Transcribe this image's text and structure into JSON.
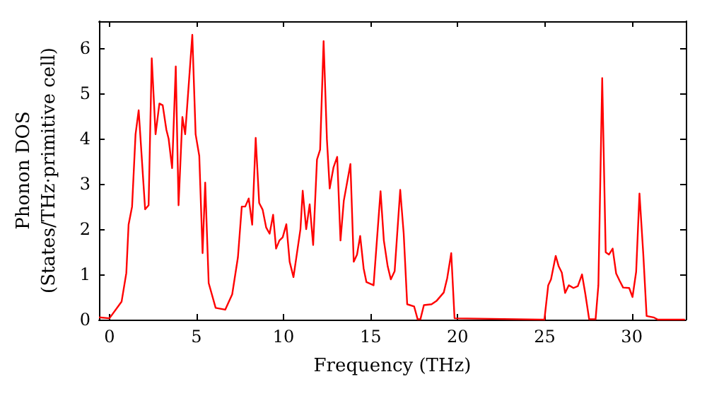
{
  "chart_data": {
    "type": "line",
    "xlabel": "Frequency (THz)",
    "ylabel": "Phonon DOS\n(States/THz·primitive cell)",
    "xlim": [
      -0.6,
      33.1
    ],
    "ylim": [
      0,
      6.6
    ],
    "xticks": [
      0,
      5,
      10,
      15,
      20,
      25,
      30
    ],
    "yticks": [
      0,
      1,
      2,
      3,
      4,
      5,
      6
    ],
    "grid": false,
    "marker": "none",
    "line_style": "solid",
    "x": [
      -0.6,
      0,
      0.7,
      0.97,
      1.1,
      1.3,
      1.5,
      1.68,
      2.05,
      2.25,
      2.43,
      2.65,
      2.87,
      3.06,
      3.27,
      3.4,
      3.6,
      3.81,
      3.97,
      4.19,
      4.35,
      4.76,
      4.95,
      5.16,
      5.35,
      5.5,
      5.7,
      6.1,
      6.65,
      7.05,
      7.38,
      7.6,
      7.8,
      8.0,
      8.2,
      8.4,
      8.6,
      8.8,
      9.0,
      9.2,
      9.4,
      9.57,
      9.76,
      9.95,
      10.16,
      10.35,
      10.57,
      10.97,
      11.1,
      11.3,
      11.5,
      11.7,
      11.92,
      12.1,
      12.3,
      12.49,
      12.65,
      12.87,
      13.08,
      13.27,
      13.46,
      13.84,
      14.03,
      14.22,
      14.4,
      14.6,
      14.76,
      15.17,
      15.57,
      15.76,
      15.98,
      16.16,
      16.38,
      16.7,
      16.9,
      17.1,
      17.5,
      17.7,
      17.86,
      18.06,
      18.5,
      18.8,
      19.2,
      19.4,
      19.63,
      19.82,
      24.98,
      25.2,
      25.36,
      25.63,
      25.8,
      25.98,
      26.17,
      26.38,
      26.65,
      26.9,
      27.14,
      27.33,
      27.55,
      27.92,
      28.08,
      28.3,
      28.5,
      28.69,
      28.9,
      29.1,
      29.3,
      29.5,
      29.85,
      30.04,
      30.25,
      30.44,
      30.66,
      30.85,
      31.25,
      31.5,
      33.05
    ],
    "series": [
      {
        "color": "#ff0000",
        "values": [
          0.05,
          0.03,
          0.4,
          1.03,
          2.1,
          2.5,
          4.1,
          4.63,
          2.44,
          2.53,
          5.78,
          4.1,
          4.78,
          4.74,
          4.2,
          4.0,
          3.35,
          5.6,
          2.53,
          4.48,
          4.1,
          6.3,
          4.1,
          3.62,
          1.47,
          3.03,
          0.81,
          0.26,
          0.22,
          0.56,
          1.38,
          2.5,
          2.5,
          2.68,
          2.1,
          4.02,
          2.58,
          2.43,
          2.04,
          1.9,
          2.32,
          1.57,
          1.75,
          1.82,
          2.11,
          1.28,
          0.94,
          2.0,
          2.85,
          2.0,
          2.55,
          1.65,
          3.54,
          3.76,
          6.16,
          3.99,
          2.9,
          3.37,
          3.6,
          1.75,
          2.63,
          3.44,
          1.28,
          1.44,
          1.85,
          1.13,
          0.83,
          0.76,
          2.84,
          1.75,
          1.18,
          0.89,
          1.07,
          2.87,
          1.9,
          0.34,
          0.29,
          0.01,
          0.01,
          0.32,
          0.34,
          0.42,
          0.6,
          0.92,
          1.47,
          0.03,
          0,
          0.76,
          0.89,
          1.41,
          1.18,
          1.04,
          0.59,
          0.76,
          0.7,
          0.74,
          1.0,
          0.57,
          0.01,
          0.01,
          0.76,
          5.34,
          1.49,
          1.44,
          1.57,
          1.02,
          0.86,
          0.71,
          0.7,
          0.5,
          1.06,
          2.79,
          1.44,
          0.08,
          0.05,
          0,
          0
        ]
      }
    ]
  }
}
